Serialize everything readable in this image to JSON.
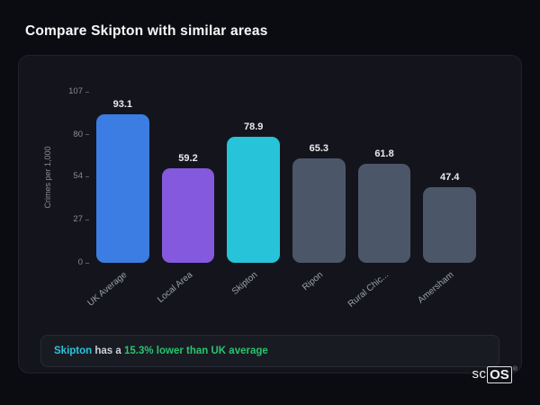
{
  "title": "Compare Skipton with similar areas",
  "chart_data": {
    "type": "bar",
    "categories": [
      "UK Average",
      "Local Area",
      "Skipton",
      "Ripon",
      "Rural Chic...",
      "Amersham"
    ],
    "values": [
      93.1,
      59.2,
      78.9,
      65.3,
      61.8,
      47.4
    ],
    "title": "Compare Skipton with similar areas",
    "xlabel": "",
    "ylabel": "Crimes per 1,000",
    "yticks": [
      107,
      80,
      54,
      27,
      0
    ],
    "ylim": [
      0,
      107
    ],
    "grid": false,
    "legend": false,
    "bar_colors": [
      "#3b7de2",
      "#8559dd",
      "#27c3d8",
      "#4b5769",
      "#4b5769",
      "#4b5769"
    ]
  },
  "note": {
    "area": "Skipton",
    "mid": " has a ",
    "highlight": "15.3% lower than UK average"
  },
  "logo": {
    "prefix": "sc",
    "box": "OS",
    "reg": "®"
  }
}
